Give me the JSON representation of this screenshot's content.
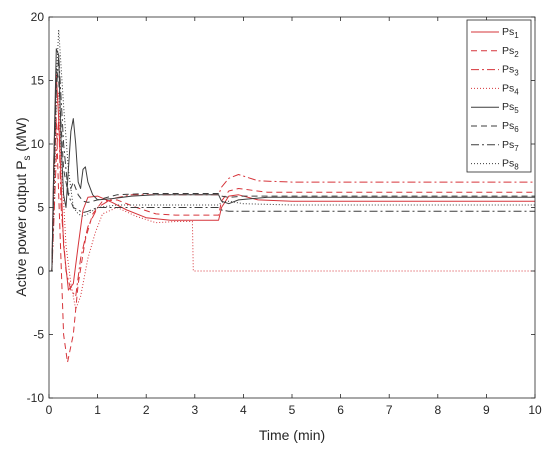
{
  "chart_data": {
    "type": "line",
    "title": "",
    "xlabel": "Time (min)",
    "ylabel": {
      "text": "Active power output P",
      "subscript": "s",
      "unit": " (MW)"
    },
    "xlim": [
      0,
      10
    ],
    "ylim": [
      -10,
      20
    ],
    "xticks": [
      0,
      1,
      2,
      3,
      4,
      5,
      6,
      7,
      8,
      9,
      10
    ],
    "yticks": [
      -10,
      -5,
      0,
      5,
      10,
      15,
      20
    ],
    "grid": false,
    "legend_position": "top-right",
    "series": [
      {
        "name": "Ps",
        "sub": "1",
        "color": "#d6343a",
        "dash": "",
        "points": [
          [
            0,
            0
          ],
          [
            0.06,
            0
          ],
          [
            0.1,
            9
          ],
          [
            0.15,
            15.5
          ],
          [
            0.2,
            12
          ],
          [
            0.3,
            2
          ],
          [
            0.4,
            -1.5
          ],
          [
            0.5,
            -1
          ],
          [
            0.6,
            2
          ],
          [
            0.7,
            4.8
          ],
          [
            0.8,
            5.8
          ],
          [
            1,
            5.9
          ],
          [
            1.3,
            5.4
          ],
          [
            1.6,
            4.8
          ],
          [
            2,
            4.2
          ],
          [
            2.5,
            4
          ],
          [
            3.49,
            4
          ],
          [
            3.55,
            5
          ],
          [
            3.7,
            5.9
          ],
          [
            3.9,
            6
          ],
          [
            4.3,
            5.6
          ],
          [
            5,
            5.5
          ],
          [
            10,
            5.5
          ]
        ]
      },
      {
        "name": "Ps",
        "sub": "2",
        "color": "#d6343a",
        "dash": "6,4",
        "points": [
          [
            0,
            0
          ],
          [
            0.06,
            0
          ],
          [
            0.1,
            7
          ],
          [
            0.15,
            12
          ],
          [
            0.2,
            6
          ],
          [
            0.3,
            -5
          ],
          [
            0.38,
            -7.2
          ],
          [
            0.5,
            -5
          ],
          [
            0.6,
            -1
          ],
          [
            0.75,
            2.5
          ],
          [
            0.9,
            4.5
          ],
          [
            1.1,
            5.5
          ],
          [
            1.4,
            5.6
          ],
          [
            1.8,
            5
          ],
          [
            2.2,
            4.5
          ],
          [
            2.6,
            4.4
          ],
          [
            3.49,
            4.4
          ],
          [
            3.55,
            5.5
          ],
          [
            3.7,
            6.3
          ],
          [
            3.9,
            6.5
          ],
          [
            4.5,
            6.2
          ],
          [
            5,
            6.2
          ],
          [
            10,
            6.2
          ]
        ]
      },
      {
        "name": "Ps",
        "sub": "3",
        "color": "#d6343a",
        "dash": "8,3,2,3",
        "points": [
          [
            0,
            0
          ],
          [
            0.06,
            0
          ],
          [
            0.1,
            4
          ],
          [
            0.15,
            9
          ],
          [
            0.2,
            12
          ],
          [
            0.25,
            5
          ],
          [
            0.35,
            0
          ],
          [
            0.45,
            -1.5
          ],
          [
            0.55,
            -2
          ],
          [
            0.65,
            1
          ],
          [
            0.8,
            3.5
          ],
          [
            1,
            5
          ],
          [
            1.3,
            5.7
          ],
          [
            1.7,
            6
          ],
          [
            2.2,
            6
          ],
          [
            3.49,
            6
          ],
          [
            3.55,
            6.6
          ],
          [
            3.7,
            7.3
          ],
          [
            3.9,
            7.6
          ],
          [
            4.3,
            7.1
          ],
          [
            5,
            7
          ],
          [
            10,
            7
          ]
        ]
      },
      {
        "name": "Ps",
        "sub": "4",
        "color": "#d6343a",
        "dash": "1,2",
        "points": [
          [
            0,
            0
          ],
          [
            0.06,
            0
          ],
          [
            0.1,
            5
          ],
          [
            0.15,
            13
          ],
          [
            0.2,
            14
          ],
          [
            0.25,
            9
          ],
          [
            0.35,
            2
          ],
          [
            0.45,
            -1
          ],
          [
            0.55,
            -3
          ],
          [
            0.65,
            -2
          ],
          [
            0.8,
            1
          ],
          [
            0.95,
            3
          ],
          [
            1.1,
            4.5
          ],
          [
            1.4,
            5
          ],
          [
            1.8,
            4.3
          ],
          [
            2.2,
            3.8
          ],
          [
            2.6,
            3.9
          ],
          [
            2.95,
            3.9
          ],
          [
            2.97,
            0
          ],
          [
            10,
            0
          ]
        ]
      },
      {
        "name": "Ps",
        "sub": "5",
        "color": "#3d3d3d",
        "dash": "",
        "points": [
          [
            0,
            0
          ],
          [
            0.06,
            0
          ],
          [
            0.1,
            9
          ],
          [
            0.15,
            17.5
          ],
          [
            0.2,
            17
          ],
          [
            0.25,
            10
          ],
          [
            0.3,
            6
          ],
          [
            0.35,
            5
          ],
          [
            0.4,
            8
          ],
          [
            0.45,
            11
          ],
          [
            0.5,
            12
          ],
          [
            0.55,
            10
          ],
          [
            0.6,
            7
          ],
          [
            0.65,
            6.5
          ],
          [
            0.7,
            8
          ],
          [
            0.75,
            8.2
          ],
          [
            0.8,
            7
          ],
          [
            0.9,
            6
          ],
          [
            1,
            5.6
          ],
          [
            1.3,
            5.7
          ],
          [
            1.7,
            5.9
          ],
          [
            2.2,
            6
          ],
          [
            3.49,
            6
          ],
          [
            3.55,
            5.5
          ],
          [
            3.7,
            5.3
          ],
          [
            3.9,
            5.6
          ],
          [
            4.5,
            5.8
          ],
          [
            10,
            5.8
          ]
        ]
      },
      {
        "name": "Ps",
        "sub": "6",
        "color": "#3d3d3d",
        "dash": "6,4",
        "points": [
          [
            0,
            0
          ],
          [
            0.06,
            0
          ],
          [
            0.1,
            8
          ],
          [
            0.15,
            16
          ],
          [
            0.2,
            15
          ],
          [
            0.3,
            8
          ],
          [
            0.4,
            6
          ],
          [
            0.5,
            7
          ],
          [
            0.6,
            6
          ],
          [
            0.7,
            5.5
          ],
          [
            0.8,
            5.4
          ],
          [
            1,
            5.6
          ],
          [
            1.4,
            6
          ],
          [
            2,
            6.1
          ],
          [
            3.49,
            6.1
          ],
          [
            3.55,
            5.9
          ],
          [
            3.7,
            5.8
          ],
          [
            4,
            5.9
          ],
          [
            10,
            5.9
          ]
        ]
      },
      {
        "name": "Ps",
        "sub": "7",
        "color": "#3d3d3d",
        "dash": "8,3,2,3",
        "points": [
          [
            0,
            0
          ],
          [
            0.06,
            0
          ],
          [
            0.1,
            7
          ],
          [
            0.15,
            14
          ],
          [
            0.2,
            17
          ],
          [
            0.3,
            10
          ],
          [
            0.4,
            6
          ],
          [
            0.5,
            5
          ],
          [
            0.6,
            4.8
          ],
          [
            0.7,
            4.6
          ],
          [
            0.8,
            4.7
          ],
          [
            1,
            5
          ],
          [
            1.4,
            5
          ],
          [
            2,
            5
          ],
          [
            3.49,
            5
          ],
          [
            3.55,
            4.8
          ],
          [
            3.7,
            4.7
          ],
          [
            4,
            4.7
          ],
          [
            10,
            4.7
          ]
        ]
      },
      {
        "name": "Ps",
        "sub": "8",
        "color": "#3d3d3d",
        "dash": "1,2",
        "points": [
          [
            0,
            0
          ],
          [
            0.06,
            0
          ],
          [
            0.1,
            6
          ],
          [
            0.15,
            15
          ],
          [
            0.2,
            19
          ],
          [
            0.3,
            13
          ],
          [
            0.4,
            8
          ],
          [
            0.5,
            5
          ],
          [
            0.6,
            4.5
          ],
          [
            0.7,
            4.3
          ],
          [
            0.8,
            4.5
          ],
          [
            1,
            5
          ],
          [
            1.4,
            5.2
          ],
          [
            2,
            5.2
          ],
          [
            3.49,
            5.2
          ],
          [
            3.55,
            5.4
          ],
          [
            3.7,
            5.5
          ],
          [
            4,
            5.3
          ],
          [
            5,
            5.2
          ],
          [
            10,
            5.2
          ]
        ]
      }
    ]
  }
}
